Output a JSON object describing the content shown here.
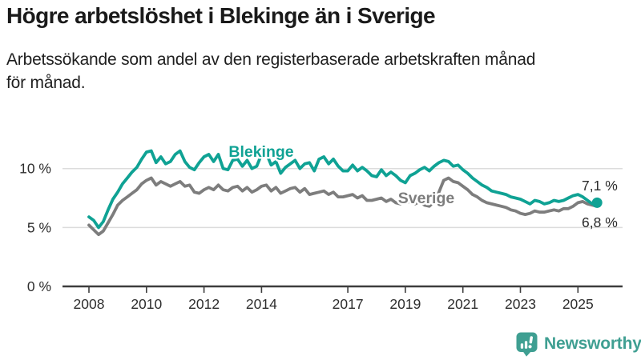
{
  "header": {
    "title": "Högre arbetslöshet i Blekinge än i Sverige",
    "subtitle": "Arbetssökande som andel av den registerbaserade arbetskraften månad för månad.",
    "subtitle_lines": [
      "Arbetssökande som andel av den registerbaserade arbetskraften månad",
      "för månad."
    ]
  },
  "footer": {
    "brand": "Newsworthy",
    "brand_color": "#3f9f92",
    "logo_icon": "speech-bubble-bar-chart-icon"
  },
  "colors": {
    "blekinge": "#0fa294",
    "sverige": "#7d7d7d",
    "gridline": "#dcdcdc",
    "axis": "#3d3d3d",
    "axis_text": "#2e2e2e",
    "annotation_text": "#2b2b2b"
  },
  "chart_data": {
    "type": "line",
    "title": "Högre arbetslöshet i Blekinge än i Sverige",
    "xlabel": "",
    "ylabel": "",
    "unit": "%",
    "grid": "horizontal",
    "legend_position": "inline-labels",
    "x_start": "2008-01",
    "x_end": "2025-09",
    "months_per_point": 2,
    "x_tick_years": [
      2008,
      2010,
      2012,
      2014,
      2017,
      2019,
      2021,
      2023,
      2025
    ],
    "x_tick_labels": [
      "2008",
      "2010",
      "2012",
      "2014",
      "2017",
      "2019",
      "2021",
      "2023",
      "2025"
    ],
    "y_ticks": [
      0,
      5,
      10
    ],
    "y_tick_labels": [
      "0 %",
      "5 %",
      "10 %"
    ],
    "ylim": [
      0,
      13
    ],
    "series": [
      {
        "name": "Blekinge",
        "color": "#0fa294",
        "end_value": 7.1,
        "end_label": "7,1 %",
        "values": [
          5.9,
          5.6,
          5.0,
          5.5,
          6.5,
          7.4,
          8.0,
          8.7,
          9.2,
          9.7,
          10.1,
          10.8,
          11.4,
          11.5,
          10.5,
          11.0,
          10.4,
          10.6,
          11.2,
          11.5,
          10.6,
          10.1,
          9.9,
          10.5,
          11.0,
          11.2,
          10.6,
          11.2,
          10.0,
          9.9,
          10.7,
          10.8,
          10.2,
          10.7,
          10.0,
          10.2,
          11.2,
          11.3,
          10.3,
          10.6,
          9.6,
          10.1,
          10.4,
          10.7,
          10.0,
          10.4,
          10.5,
          9.8,
          10.8,
          11.0,
          10.4,
          10.8,
          10.2,
          9.8,
          9.8,
          10.3,
          9.8,
          10.1,
          9.8,
          9.4,
          9.3,
          9.9,
          9.4,
          9.7,
          9.4,
          9.0,
          8.8,
          9.4,
          9.6,
          9.9,
          10.1,
          9.8,
          10.2,
          10.5,
          10.7,
          10.6,
          10.2,
          10.3,
          9.9,
          9.6,
          9.2,
          8.9,
          8.6,
          8.4,
          8.1,
          8.0,
          7.9,
          7.8,
          7.6,
          7.5,
          7.4,
          7.2,
          7.0,
          7.3,
          7.2,
          7.0,
          7.1,
          7.3,
          7.2,
          7.3,
          7.5,
          7.7,
          7.8,
          7.6,
          7.3,
          7.0,
          7.1
        ]
      },
      {
        "name": "Sverige",
        "color": "#7d7d7d",
        "end_value": 6.8,
        "end_label": "6,8 %",
        "values": [
          5.2,
          4.8,
          4.4,
          4.7,
          5.4,
          6.1,
          6.9,
          7.3,
          7.6,
          7.9,
          8.2,
          8.7,
          9.0,
          9.2,
          8.6,
          8.9,
          8.7,
          8.5,
          8.7,
          8.9,
          8.5,
          8.6,
          8.0,
          7.9,
          8.2,
          8.4,
          8.2,
          8.6,
          8.2,
          8.1,
          8.4,
          8.5,
          8.1,
          8.4,
          8.0,
          8.2,
          8.5,
          8.6,
          8.1,
          8.4,
          7.9,
          8.1,
          8.3,
          8.4,
          8.0,
          8.3,
          7.8,
          7.9,
          8.0,
          8.1,
          7.8,
          8.0,
          7.6,
          7.6,
          7.7,
          7.8,
          7.5,
          7.7,
          7.3,
          7.3,
          7.4,
          7.5,
          7.2,
          7.4,
          7.1,
          7.0,
          7.1,
          7.2,
          7.0,
          7.2,
          6.9,
          6.8,
          7.2,
          8.0,
          9.0,
          9.2,
          8.9,
          8.8,
          8.5,
          8.2,
          7.8,
          7.6,
          7.3,
          7.1,
          7.0,
          6.9,
          6.8,
          6.7,
          6.5,
          6.4,
          6.2,
          6.1,
          6.2,
          6.4,
          6.3,
          6.3,
          6.4,
          6.5,
          6.4,
          6.6,
          6.6,
          6.8,
          7.1,
          7.2,
          7.0,
          6.9,
          6.8
        ]
      }
    ]
  }
}
